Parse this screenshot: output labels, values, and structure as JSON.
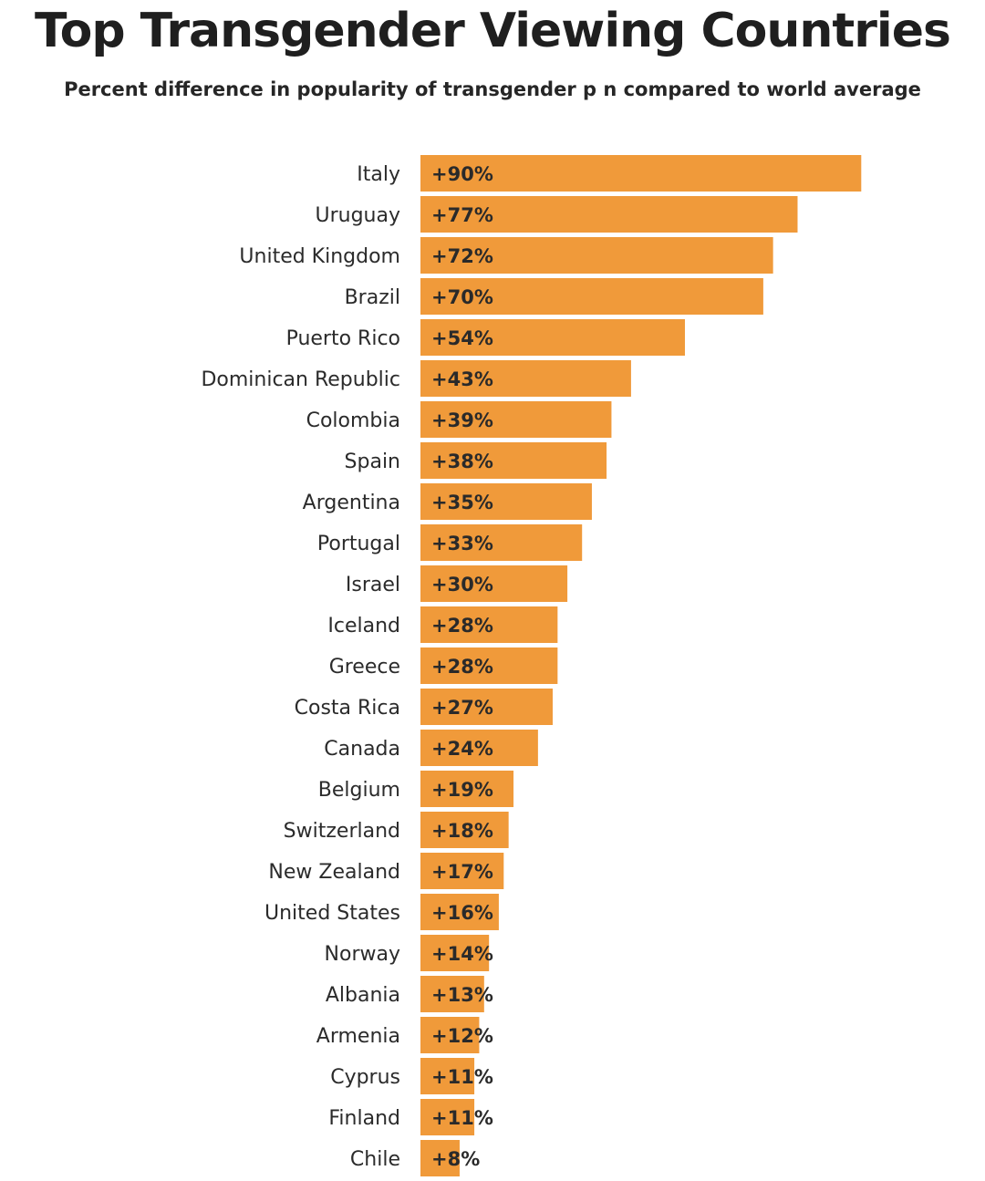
{
  "chart_data": {
    "type": "bar",
    "orientation": "horizontal",
    "title": "Top Transgender Viewing Countries",
    "subtitle": "Percent difference in popularity of transgender p    n compared to world average",
    "categories": [
      "Italy",
      "Uruguay",
      "United Kingdom",
      "Brazil",
      "Puerto Rico",
      "Dominican Republic",
      "Colombia",
      "Spain",
      "Argentina",
      "Portugal",
      "Israel",
      "Iceland",
      "Greece",
      "Costa Rica",
      "Canada",
      "Belgium",
      "Switzerland",
      "New Zealand",
      "United States",
      "Norway",
      "Albania",
      "Armenia",
      "Cyprus",
      "Finland",
      "Chile"
    ],
    "values": [
      90,
      77,
      72,
      70,
      54,
      43,
      39,
      38,
      35,
      33,
      30,
      28,
      28,
      27,
      24,
      19,
      18,
      17,
      16,
      14,
      13,
      12,
      11,
      11,
      8
    ],
    "value_labels": [
      "+90%",
      "+77%",
      "+72%",
      "+70%",
      "+54%",
      "+43%",
      "+39%",
      "+38%",
      "+35%",
      "+33%",
      "+30%",
      "+28%",
      "+28%",
      "+27%",
      "+24%",
      "+19%",
      "+18%",
      "+17%",
      "+16%",
      "+14%",
      "+13%",
      "+12%",
      "+11%",
      "+11%",
      "+8%"
    ],
    "xlim": [
      0,
      90
    ],
    "xlabel": "",
    "ylabel": "",
    "grid": false,
    "legend": "none",
    "bar_color": "#F09A3A"
  }
}
